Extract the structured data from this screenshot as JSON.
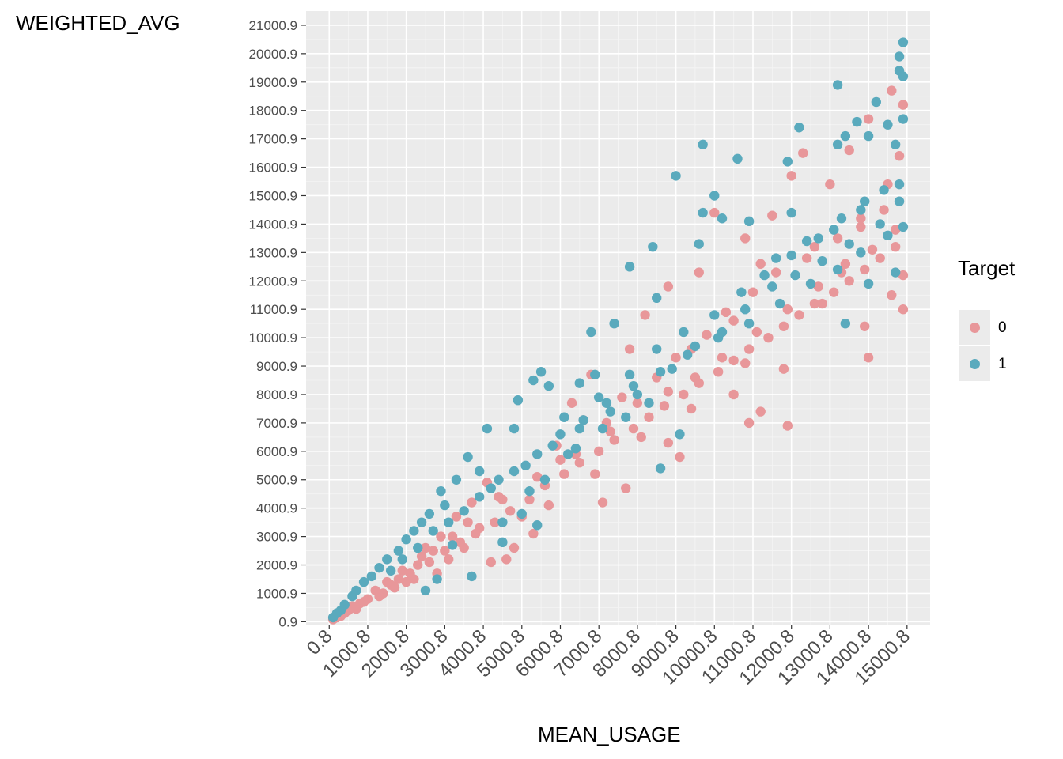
{
  "chart_data": {
    "type": "scatter",
    "title": "",
    "xlabel": "MEAN_USAGE",
    "ylabel": "WEIGHTED_AVG",
    "xlim": [
      -600,
      15600
    ],
    "ylim": [
      -100,
      21500
    ],
    "x_ticks": [
      0.8,
      1000.8,
      2000.8,
      3000.8,
      4000.8,
      5000.8,
      6000.8,
      7000.8,
      8000.8,
      9000.8,
      10000.8,
      11000.8,
      12000.8,
      13000.8,
      14000.8,
      15000.8
    ],
    "x_tick_labels": [
      "0.8",
      "1000.8",
      "2000.8",
      "3000.8",
      "4000.8",
      "5000.8",
      "6000.8",
      "7000.8",
      "8000.8",
      "9000.8",
      "10000.8",
      "11000.8",
      "12000.8",
      "13000.8",
      "14000.8",
      "15000.8"
    ],
    "y_ticks": [
      0.9,
      1000.9,
      2000.9,
      3000.9,
      4000.9,
      5000.9,
      6000.9,
      7000.9,
      8000.9,
      9000.9,
      10000.9,
      11000.9,
      12000.9,
      13000.9,
      14000.9,
      15000.9,
      16000.9,
      17000.9,
      18000.9,
      19000.9,
      20000.9,
      21000.9
    ],
    "y_tick_labels": [
      "0.9",
      "1000.9",
      "2000.9",
      "3000.9",
      "4000.9",
      "5000.9",
      "6000.9",
      "7000.9",
      "8000.9",
      "9000.9",
      "10000.9",
      "11000.9",
      "12000.9",
      "13000.9",
      "14000.9",
      "15000.9",
      "16000.9",
      "17000.9",
      "18000.9",
      "19000.9",
      "20000.9",
      "21000.9"
    ],
    "grid": true,
    "legend_position": "right",
    "legend_title": "Target",
    "series": [
      {
        "name": "0",
        "color": "#e8979a",
        "points": [
          [
            14900,
            18200
          ],
          [
            14600,
            18700
          ],
          [
            14000,
            17700
          ],
          [
            12300,
            16500
          ],
          [
            13500,
            16600
          ],
          [
            14800,
            16400
          ],
          [
            12000,
            15700
          ],
          [
            13000,
            15400
          ],
          [
            14500,
            15400
          ],
          [
            10000,
            14400
          ],
          [
            11500,
            14300
          ],
          [
            13800,
            14200
          ],
          [
            14700,
            13800
          ],
          [
            10800,
            13500
          ],
          [
            12600,
            13200
          ],
          [
            14900,
            12200
          ],
          [
            9600,
            12300
          ],
          [
            11200,
            12600
          ],
          [
            13300,
            12300
          ],
          [
            14600,
            11500
          ],
          [
            8800,
            11800
          ],
          [
            12800,
            11200
          ],
          [
            14900,
            11000
          ],
          [
            8200,
            10800
          ],
          [
            10500,
            10600
          ],
          [
            13900,
            10400
          ],
          [
            14000,
            9300
          ],
          [
            11800,
            8900
          ],
          [
            7800,
            9600
          ],
          [
            9400,
            9600
          ],
          [
            10800,
            9100
          ],
          [
            10500,
            8000
          ],
          [
            11200,
            7400
          ],
          [
            11900,
            6900
          ],
          [
            10900,
            7000
          ],
          [
            9400,
            7500
          ],
          [
            8800,
            6300
          ],
          [
            9100,
            5800
          ],
          [
            8100,
            6500
          ],
          [
            7700,
            4700
          ],
          [
            6800,
            8700
          ],
          [
            6300,
            7700
          ],
          [
            7300,
            6700
          ],
          [
            6000,
            5700
          ],
          [
            6900,
            5200
          ],
          [
            7100,
            4200
          ],
          [
            5700,
            4100
          ],
          [
            4400,
            4400
          ],
          [
            5000,
            3700
          ],
          [
            5300,
            3100
          ],
          [
            4800,
            2600
          ],
          [
            4600,
            2200
          ],
          [
            4100,
            4900
          ],
          [
            3700,
            4200
          ],
          [
            3900,
            3300
          ],
          [
            3300,
            3700
          ],
          [
            3500,
            2600
          ],
          [
            4200,
            2100
          ],
          [
            2900,
            3000
          ],
          [
            3100,
            2200
          ],
          [
            2500,
            2600
          ],
          [
            2800,
            1700
          ],
          [
            2300,
            2000
          ],
          [
            2200,
            1500
          ],
          [
            1900,
            1800
          ],
          [
            1600,
            1300
          ],
          [
            1400,
            1000
          ],
          [
            1200,
            1100
          ],
          [
            1000,
            800
          ],
          [
            800,
            650
          ],
          [
            700,
            450
          ],
          [
            500,
            400
          ],
          [
            400,
            300
          ],
          [
            300,
            200
          ],
          [
            200,
            150
          ],
          [
            100,
            80
          ],
          [
            600,
            550
          ],
          [
            900,
            700
          ],
          [
            1300,
            900
          ],
          [
            1700,
            1200
          ],
          [
            2000,
            1400
          ],
          [
            2600,
            2100
          ],
          [
            3000,
            2500
          ],
          [
            3400,
            2800
          ],
          [
            3800,
            3100
          ],
          [
            4300,
            3500
          ],
          [
            4700,
            3900
          ],
          [
            5200,
            4300
          ],
          [
            5600,
            4800
          ],
          [
            6100,
            5200
          ],
          [
            6500,
            5600
          ],
          [
            7000,
            6000
          ],
          [
            7400,
            6400
          ],
          [
            7900,
            6800
          ],
          [
            8300,
            7200
          ],
          [
            8700,
            7600
          ],
          [
            9200,
            8000
          ],
          [
            9600,
            8400
          ],
          [
            10100,
            8800
          ],
          [
            10500,
            9200
          ],
          [
            10900,
            9600
          ],
          [
            11400,
            10000
          ],
          [
            11800,
            10400
          ],
          [
            12200,
            10800
          ],
          [
            12600,
            11200
          ],
          [
            13100,
            11600
          ],
          [
            13500,
            12000
          ],
          [
            13900,
            12400
          ],
          [
            14300,
            12800
          ],
          [
            14700,
            13200
          ],
          [
            5900,
            6200
          ],
          [
            6600,
            7100
          ],
          [
            7600,
            7900
          ],
          [
            8500,
            8600
          ],
          [
            9000,
            9300
          ],
          [
            9800,
            10100
          ],
          [
            10300,
            10900
          ],
          [
            11000,
            11600
          ],
          [
            11600,
            12300
          ],
          [
            12400,
            12800
          ],
          [
            13200,
            13500
          ],
          [
            13800,
            13900
          ],
          [
            14400,
            14500
          ],
          [
            3600,
            3500
          ],
          [
            4500,
            4300
          ],
          [
            5400,
            5100
          ],
          [
            6400,
            5900
          ],
          [
            7200,
            7000
          ],
          [
            8000,
            7700
          ],
          [
            8800,
            8100
          ],
          [
            9500,
            8600
          ],
          [
            10200,
            9300
          ],
          [
            11100,
            10200
          ],
          [
            11900,
            11000
          ],
          [
            12700,
            11800
          ],
          [
            13400,
            12600
          ],
          [
            14100,
            13100
          ],
          [
            2400,
            2300
          ],
          [
            2700,
            2500
          ],
          [
            3200,
            3000
          ],
          [
            1500,
            1400
          ],
          [
            1800,
            1500
          ],
          [
            2100,
            1700
          ]
        ]
      },
      {
        "name": "1",
        "color": "#5aaabd",
        "points": [
          [
            14900,
            20400
          ],
          [
            14800,
            19900
          ],
          [
            14800,
            19400
          ],
          [
            14900,
            19200
          ],
          [
            13200,
            18900
          ],
          [
            14200,
            18300
          ],
          [
            14900,
            17700
          ],
          [
            13700,
            17600
          ],
          [
            14500,
            17500
          ],
          [
            12200,
            17400
          ],
          [
            13400,
            17100
          ],
          [
            14000,
            17100
          ],
          [
            14700,
            16800
          ],
          [
            9700,
            16800
          ],
          [
            10600,
            16300
          ],
          [
            11900,
            16200
          ],
          [
            13200,
            16800
          ],
          [
            9000,
            15700
          ],
          [
            14800,
            15400
          ],
          [
            10000,
            15000
          ],
          [
            9700,
            14400
          ],
          [
            10200,
            14200
          ],
          [
            13800,
            14500
          ],
          [
            12000,
            14400
          ],
          [
            10900,
            14100
          ],
          [
            14900,
            13900
          ],
          [
            13100,
            13800
          ],
          [
            12400,
            13400
          ],
          [
            8400,
            13200
          ],
          [
            9600,
            13300
          ],
          [
            7800,
            12500
          ],
          [
            11600,
            12800
          ],
          [
            14700,
            12300
          ],
          [
            14000,
            11900
          ],
          [
            13400,
            10500
          ],
          [
            8500,
            11400
          ],
          [
            6800,
            10200
          ],
          [
            7400,
            10500
          ],
          [
            5500,
            8800
          ],
          [
            5300,
            8500
          ],
          [
            6900,
            8700
          ],
          [
            5700,
            8300
          ],
          [
            6500,
            8400
          ],
          [
            4900,
            7800
          ],
          [
            4100,
            6800
          ],
          [
            4800,
            6800
          ],
          [
            8600,
            5400
          ],
          [
            9100,
            6600
          ],
          [
            6200,
            5900
          ],
          [
            5600,
            5000
          ],
          [
            5200,
            4600
          ],
          [
            5000,
            3800
          ],
          [
            4500,
            3500
          ],
          [
            5400,
            3400
          ],
          [
            3600,
            5800
          ],
          [
            3900,
            5300
          ],
          [
            3300,
            5000
          ],
          [
            2900,
            4600
          ],
          [
            3000,
            4100
          ],
          [
            2600,
            3800
          ],
          [
            2400,
            3500
          ],
          [
            2200,
            3200
          ],
          [
            2000,
            2900
          ],
          [
            1800,
            2500
          ],
          [
            1500,
            2200
          ],
          [
            1300,
            1900
          ],
          [
            1100,
            1600
          ],
          [
            900,
            1400
          ],
          [
            700,
            1100
          ],
          [
            600,
            900
          ],
          [
            400,
            600
          ],
          [
            300,
            400
          ],
          [
            200,
            300
          ],
          [
            100,
            150
          ],
          [
            3700,
            1600
          ],
          [
            2500,
            1100
          ],
          [
            2800,
            1500
          ],
          [
            4500,
            2800
          ],
          [
            3200,
            2700
          ],
          [
            6500,
            6800
          ],
          [
            7300,
            7400
          ],
          [
            8000,
            8000
          ],
          [
            8900,
            8900
          ],
          [
            9500,
            9700
          ],
          [
            10200,
            10200
          ],
          [
            10800,
            11000
          ],
          [
            11500,
            11800
          ],
          [
            12100,
            12200
          ],
          [
            12800,
            12700
          ],
          [
            13500,
            13300
          ],
          [
            14300,
            14000
          ],
          [
            14800,
            14800
          ],
          [
            6100,
            7200
          ],
          [
            7000,
            7900
          ],
          [
            7800,
            8700
          ],
          [
            8500,
            9600
          ],
          [
            9200,
            10200
          ],
          [
            10000,
            10800
          ],
          [
            10700,
            11600
          ],
          [
            11300,
            12200
          ],
          [
            12000,
            12900
          ],
          [
            12700,
            13500
          ],
          [
            13300,
            14200
          ],
          [
            13900,
            14800
          ],
          [
            14400,
            15200
          ],
          [
            4200,
            4700
          ],
          [
            4800,
            5300
          ],
          [
            5400,
            5900
          ],
          [
            6000,
            6600
          ],
          [
            6600,
            7100
          ],
          [
            7200,
            7700
          ],
          [
            7900,
            8300
          ],
          [
            8600,
            8800
          ],
          [
            9300,
            9400
          ],
          [
            10100,
            10000
          ],
          [
            10900,
            10500
          ],
          [
            11700,
            11200
          ],
          [
            12500,
            11900
          ],
          [
            13200,
            12400
          ],
          [
            13800,
            13000
          ],
          [
            14500,
            13600
          ],
          [
            1600,
            1800
          ],
          [
            1900,
            2200
          ],
          [
            2300,
            2600
          ],
          [
            2700,
            3200
          ],
          [
            3100,
            3500
          ],
          [
            3500,
            3900
          ],
          [
            3900,
            4400
          ],
          [
            4400,
            5000
          ],
          [
            5100,
            5500
          ],
          [
            5800,
            6200
          ],
          [
            6400,
            6100
          ],
          [
            7100,
            6800
          ],
          [
            7700,
            7200
          ],
          [
            8300,
            7700
          ]
        ]
      }
    ]
  },
  "legend": {
    "title": "Target",
    "items": [
      {
        "label": "0",
        "color": "#e8979a"
      },
      {
        "label": "1",
        "color": "#5aaabd"
      }
    ]
  }
}
